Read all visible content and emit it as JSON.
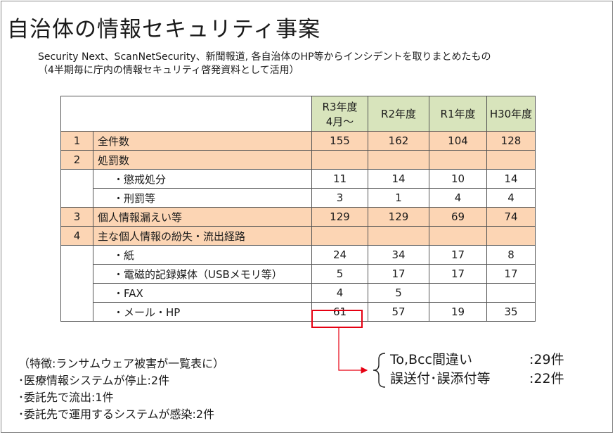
{
  "title": "自治体の情報セキュリティ事案",
  "subtitle": {
    "line1": "Security Next、ScanNetSecurity、新聞報道, 各自治体のHP等からインシデントを取りまとめたもの",
    "line2": "（4半期毎に庁内の情報セキュリティ啓発資料として活用）"
  },
  "table": {
    "headers": [
      {
        "line1": "R3年度",
        "line2": "4月～"
      },
      {
        "line1": "R2年度",
        "line2": ""
      },
      {
        "line1": "R1年度",
        "line2": ""
      },
      {
        "line1": "H30年度",
        "line2": ""
      }
    ],
    "rows": [
      {
        "num": "1",
        "label": "全件数",
        "values": [
          "155",
          "162",
          "104",
          "128"
        ]
      },
      {
        "num": "2",
        "label": "処罰数",
        "values": [
          "",
          "",
          "",
          ""
        ]
      },
      {
        "num": "",
        "label": "・懲戒処分",
        "values": [
          "11",
          "14",
          "10",
          "14"
        ]
      },
      {
        "num": "",
        "label": "・刑罰等",
        "values": [
          "3",
          "1",
          "4",
          "4"
        ]
      },
      {
        "num": "3",
        "label": "個人情報漏えい等",
        "values": [
          "129",
          "129",
          "69",
          "74"
        ]
      },
      {
        "num": "4",
        "label": "主な個人情報の紛失・流出経路",
        "values": [
          "",
          "",
          "",
          ""
        ]
      },
      {
        "num": "",
        "label": "・紙",
        "values": [
          "24",
          "34",
          "17",
          "8"
        ]
      },
      {
        "num": "",
        "label": "・電磁的記録媒体（USBメモリ等）",
        "values": [
          "5",
          "17",
          "17",
          "17"
        ]
      },
      {
        "num": "",
        "label": "・FAX",
        "values": [
          "4",
          "5",
          "",
          ""
        ]
      },
      {
        "num": "",
        "label": "・メール・HP",
        "values": [
          "61",
          "57",
          "19",
          "35"
        ]
      }
    ]
  },
  "features": [
    "（特徴:ランサムウェア被害が一覧表に）",
    "･医療情報システムが停止:2件",
    "･委託先で流出:1件",
    "･委託先で運用するシステムが感染:2件"
  ],
  "breakdown": [
    {
      "label": "To,Bcc間違い",
      "count": ":29件"
    },
    {
      "label": "誤送付･誤添付等",
      "count": ":22件"
    }
  ],
  "colors": {
    "header_bg": "#d8e4bc",
    "main_row_bg": "#fcd5b4",
    "highlight": "#e60012"
  }
}
